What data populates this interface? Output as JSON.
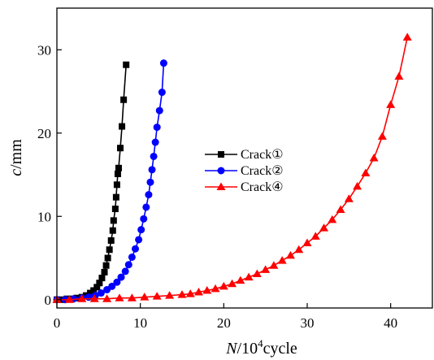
{
  "chart_data": {
    "type": "line",
    "xlabel_italic": "N",
    "xlabel_unit_pre": "/10",
    "xlabel_unit_sup": "4",
    "xlabel_unit_post": "cycle",
    "ylabel_italic": "c",
    "ylabel_unit": "/mm",
    "xlim": [
      0,
      45
    ],
    "ylim": [
      -1,
      35
    ],
    "xticks": [
      0,
      10,
      20,
      30,
      40
    ],
    "yticks": [
      0,
      10,
      20,
      30
    ],
    "grid": false,
    "legend_position": "center",
    "series": [
      {
        "name": "Crack①",
        "color": "#000000",
        "marker": "square",
        "x": [
          0.0,
          0.6,
          1.2,
          1.8,
          2.4,
          3.0,
          3.5,
          4.0,
          4.4,
          4.8,
          5.1,
          5.4,
          5.7,
          5.9,
          6.1,
          6.3,
          6.5,
          6.7,
          6.8,
          7.0,
          7.1,
          7.2,
          7.3,
          7.4,
          7.6,
          7.8,
          8.0,
          8.3
        ],
        "y": [
          0.0,
          0.0,
          0.1,
          0.1,
          0.2,
          0.3,
          0.5,
          0.8,
          1.1,
          1.5,
          2.0,
          2.6,
          3.3,
          4.1,
          5.0,
          6.0,
          7.1,
          8.3,
          9.5,
          10.9,
          12.3,
          13.8,
          15.1,
          15.8,
          18.2,
          20.8,
          24.0,
          28.2
        ]
      },
      {
        "name": "Crack②",
        "color": "#0000ff",
        "marker": "circle",
        "x": [
          0.0,
          1.0,
          2.0,
          3.0,
          3.8,
          4.6,
          5.3,
          6.0,
          6.6,
          7.2,
          7.7,
          8.2,
          8.6,
          9.0,
          9.4,
          9.8,
          10.1,
          10.4,
          10.7,
          11.0,
          11.2,
          11.4,
          11.6,
          11.8,
          12.0,
          12.3,
          12.6,
          12.8
        ],
        "y": [
          0.0,
          0.0,
          0.1,
          0.2,
          0.3,
          0.5,
          0.8,
          1.2,
          1.6,
          2.1,
          2.7,
          3.4,
          4.2,
          5.1,
          6.1,
          7.2,
          8.4,
          9.7,
          11.1,
          12.6,
          14.1,
          15.6,
          17.2,
          18.9,
          20.7,
          22.7,
          24.9,
          28.4
        ]
      },
      {
        "name": "Crack④",
        "color": "#ff0000",
        "marker": "triangle",
        "x": [
          0.0,
          1.5,
          3.0,
          4.5,
          6.0,
          7.5,
          9.0,
          10.5,
          12.0,
          13.5,
          15.0,
          16.0,
          17.0,
          18.0,
          19.0,
          20.0,
          21.0,
          22.0,
          23.0,
          24.0,
          25.0,
          26.0,
          27.0,
          28.0,
          29.0,
          30.0,
          31.0,
          32.0,
          33.0,
          34.0,
          35.0,
          36.0,
          37.0,
          38.0,
          39.0,
          40.0,
          41.0,
          42.0
        ],
        "y": [
          0.0,
          0.0,
          0.1,
          0.1,
          0.1,
          0.2,
          0.2,
          0.3,
          0.4,
          0.5,
          0.6,
          0.7,
          0.9,
          1.1,
          1.3,
          1.6,
          1.9,
          2.3,
          2.7,
          3.1,
          3.6,
          4.1,
          4.7,
          5.3,
          6.0,
          6.8,
          7.6,
          8.6,
          9.6,
          10.8,
          12.1,
          13.6,
          15.2,
          17.0,
          19.6,
          23.4,
          26.8,
          31.5
        ]
      }
    ]
  }
}
